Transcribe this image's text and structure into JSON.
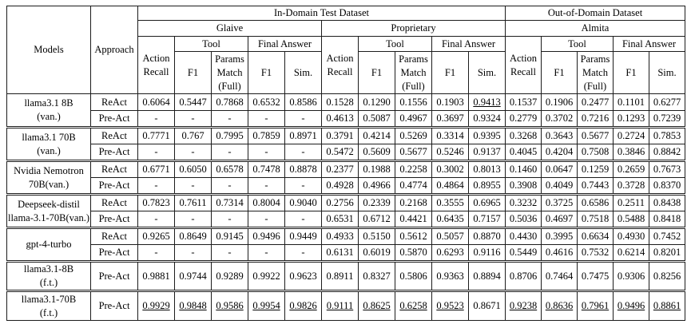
{
  "header": {
    "models": "Models",
    "approach": "Approach",
    "in_domain": "In-Domain Test Dataset",
    "out_domain": "Out-of-Domain Dataset",
    "glaive": "Glaive",
    "proprietary": "Proprietary",
    "almita": "Almita",
    "tool": "Tool",
    "final_answer": "Final Answer",
    "action_recall": "Action Recall",
    "f1": "F1",
    "params_match": "Params Match (Full)",
    "sim": "Sim."
  },
  "body": {
    "groups": [
      {
        "model_lines": [
          "llama3.1 8B",
          "(van.)"
        ],
        "tall": false,
        "rows": [
          {
            "approach": "ReAct",
            "values": [
              "0.6064",
              "0.5447",
              "0.7868",
              "0.6532",
              "0.8586",
              "0.1528",
              "0.1290",
              "0.1556",
              "0.1903",
              "0.9413",
              "0.1537",
              "0.1906",
              "0.2477",
              "0.1101",
              "0.6277"
            ],
            "styles": [
              "",
              "",
              "",
              "",
              "",
              "",
              "",
              "",
              "",
              "bu",
              "",
              "",
              "",
              "",
              ""
            ]
          },
          {
            "approach": "Pre-Act",
            "values": [
              "-",
              "-",
              "-",
              "-",
              "-",
              "0.4613",
              "0.5087",
              "0.4967",
              "0.3697",
              "0.9324",
              "0.2779",
              "0.3702",
              "0.7216",
              "0.1293",
              "0.7239"
            ],
            "styles": [
              "",
              "",
              "",
              "",
              "",
              "b",
              "b",
              "b",
              "b",
              "",
              "b",
              "b",
              "b",
              "b",
              "b"
            ]
          }
        ]
      },
      {
        "model_lines": [
          "llama3.1 70B",
          "(van.)"
        ],
        "tall": false,
        "rows": [
          {
            "approach": "ReAct",
            "values": [
              "0.7771",
              "0.767",
              "0.7995",
              "0.7859",
              "0.8971",
              "0.3791",
              "0.4214",
              "0.5269",
              "0.3314",
              "0.9395",
              "0.3268",
              "0.3643",
              "0.5677",
              "0.2724",
              "0.7853"
            ],
            "styles": [
              "",
              "",
              "",
              "",
              "",
              "",
              "",
              "",
              "",
              "b",
              "",
              "",
              "",
              "",
              ""
            ]
          },
          {
            "approach": "Pre-Act",
            "values": [
              "-",
              "-",
              "-",
              "-",
              "-",
              "0.5472",
              "0.5609",
              "0.5677",
              "0.5246",
              "0.9137",
              "0.4045",
              "0.4204",
              "0.7508",
              "0.3846",
              "0.8842"
            ],
            "styles": [
              "",
              "",
              "",
              "",
              "",
              "b",
              "b",
              "b",
              "b",
              "",
              "b",
              "b",
              "b",
              "b",
              "b"
            ]
          }
        ]
      },
      {
        "model_lines": [
          "Nvidia Nemotron",
          "70B(van.)"
        ],
        "tall": false,
        "rows": [
          {
            "approach": "ReAct",
            "values": [
              "0.6771",
              "0.6050",
              "0.6578",
              "0.7478",
              "0.8878",
              "0.2377",
              "0.1988",
              "0.2258",
              "0.3002",
              "0.8013",
              "0.1460",
              "0.0647",
              "0.1259",
              "0.2659",
              "0.7673"
            ],
            "styles": [
              "",
              "",
              "",
              "",
              "",
              "",
              "",
              "",
              "",
              "",
              "",
              "",
              "",
              "",
              ""
            ]
          },
          {
            "approach": "Pre-Act",
            "values": [
              "-",
              "-",
              "-",
              "-",
              "-",
              "0.4928",
              "0.4966",
              "0.4774",
              "0.4864",
              "0.8955",
              "0.3908",
              "0.4049",
              "0.7443",
              "0.3728",
              "0.8370"
            ],
            "styles": [
              "",
              "",
              "",
              "",
              "",
              "b",
              "b",
              "b",
              "b",
              "b",
              "b",
              "b",
              "b",
              "b",
              "b"
            ]
          }
        ]
      },
      {
        "model_lines": [
          "Deepseek-distil",
          "llama-3.1-70B(van.)"
        ],
        "tall": false,
        "rows": [
          {
            "approach": "ReAct",
            "values": [
              "0.7823",
              "0.7611",
              "0.7314",
              "0.8004",
              "0.9040",
              "0.2756",
              "0.2339",
              "0.2168",
              "0.3555",
              "0.6965",
              "0.3232",
              "0.3725",
              "0.6586",
              "0.2511",
              "0.8438"
            ],
            "styles": [
              "",
              "",
              "",
              "",
              "",
              "",
              "",
              "",
              "",
              "",
              "",
              "",
              "",
              "",
              "b"
            ]
          },
          {
            "approach": "Pre-Act",
            "values": [
              "-",
              "-",
              "-",
              "-",
              "-",
              "0.6531",
              "0.6712",
              "0.4421",
              "0.6435",
              "0.7157",
              "0.5036",
              "0.4697",
              "0.7518",
              "0.5488",
              "0.8418"
            ],
            "styles": [
              "",
              "",
              "",
              "",
              "",
              "b",
              "b",
              "b",
              "b",
              "b",
              "b",
              "b",
              "b",
              "b",
              ""
            ]
          }
        ]
      },
      {
        "model_lines": [
          "gpt-4-turbo"
        ],
        "tall": false,
        "rows": [
          {
            "approach": "ReAct",
            "values": [
              "0.9265",
              "0.8649",
              "0.9145",
              "0.9496",
              "0.9449",
              "0.4933",
              "0.5150",
              "0.5612",
              "0.5057",
              "0.8870",
              "0.4430",
              "0.3995",
              "0.6634",
              "0.4930",
              "0.7452"
            ],
            "styles": [
              "",
              "",
              "",
              "",
              "",
              "",
              "",
              "",
              "",
              "",
              "",
              "",
              "",
              "",
              ""
            ]
          },
          {
            "approach": "Pre-Act",
            "values": [
              "-",
              "-",
              "-",
              "-",
              "-",
              "0.6131",
              "0.6019",
              "0.5870",
              "0.6293",
              "0.9116",
              "0.5449",
              "0.4616",
              "0.7532",
              "0.6214",
              "0.8201"
            ],
            "styles": [
              "",
              "",
              "",
              "",
              "",
              "b",
              "b",
              "b",
              "b",
              "b",
              "b",
              "b",
              "b",
              "b",
              "b"
            ]
          }
        ]
      },
      {
        "model_lines": [
          "llama3.1-8B",
          "(f.t.)"
        ],
        "tall": true,
        "rows": [
          {
            "approach": "Pre-Act",
            "values": [
              "0.9881",
              "0.9744",
              "0.9289",
              "0.9922",
              "0.9623",
              "0.8911",
              "0.8327",
              "0.5806",
              "0.9363",
              "0.8894",
              "0.8706",
              "0.7464",
              "0.7475",
              "0.9306",
              "0.8256"
            ],
            "styles": [
              "",
              "",
              "",
              "",
              "",
              "",
              "",
              "",
              "",
              "",
              "",
              "",
              "",
              "",
              ""
            ]
          }
        ]
      },
      {
        "model_lines": [
          "llama3.1-70B",
          "(f.t.)"
        ],
        "tall": true,
        "rows": [
          {
            "approach": "Pre-Act",
            "values": [
              "0.9929",
              "0.9848",
              "0.9586",
              "0.9954",
              "0.9826",
              "0.9111",
              "0.8625",
              "0.6258",
              "0.9523",
              "0.8671",
              "0.9238",
              "0.8636",
              "0.7961",
              "0.9496",
              "0.8861"
            ],
            "styles": [
              "bu",
              "bu",
              "bu",
              "bu",
              "bu",
              "bu",
              "bu",
              "bu",
              "bu",
              "",
              "bu",
              "bu",
              "bu",
              "bu",
              "bu"
            ]
          }
        ]
      }
    ]
  }
}
